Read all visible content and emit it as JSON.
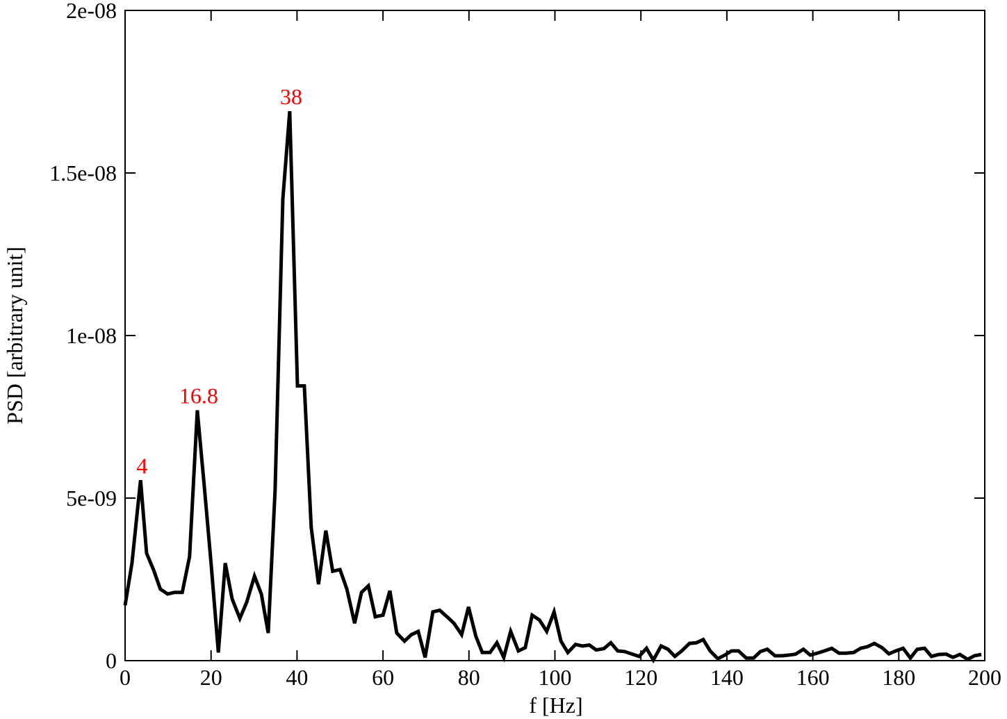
{
  "chart_data": {
    "type": "line",
    "x_label": "f [Hz]",
    "y_label": "PSD [arbitrary unit]",
    "xlim": [
      0,
      200
    ],
    "ylim": [
      0,
      2e-08
    ],
    "xticks": [
      0,
      20,
      40,
      60,
      80,
      100,
      120,
      140,
      160,
      180,
      200
    ],
    "yticks": [
      0,
      {
        "value": 5e-09,
        "label": "5e-09"
      },
      {
        "value": 1e-08,
        "label": "1e-08"
      },
      {
        "value": 1.5e-08,
        "label": "1.5e-08"
      },
      {
        "value": 2e-08,
        "label": "2e-08"
      }
    ],
    "annotations": [
      "4",
      "16.8",
      "38"
    ],
    "annotation_color": "#ff0000",
    "x": [
      0,
      1.6,
      3.6,
      5.0,
      6.6,
      8.2,
      9.9,
      11.5,
      13.3,
      15.0,
      16.8,
      18.4,
      20.0,
      21.7,
      23.3,
      24.9,
      26.7,
      28.3,
      30.1,
      31.7,
      33.3,
      34.9,
      36.7,
      38.3,
      40.1,
      41.7,
      43.3,
      45.0,
      46.7,
      48.3,
      50.0,
      51.6,
      53.4,
      55.0,
      56.6,
      58.2,
      60.0,
      61.6,
      63.2,
      65.0,
      66.6,
      68.2,
      69.8,
      71.6,
      73.2,
      74.9,
      76.5,
      78.3,
      79.9,
      81.6,
      83.1,
      84.9,
      86.5,
      88.1,
      89.7,
      91.5,
      93.1,
      94.7,
      96.4,
      98.1,
      99.8,
      101.4,
      103.0,
      104.8,
      106.4,
      108.0,
      109.6,
      111.4,
      113.0,
      114.6,
      116.2,
      118.0,
      119.6,
      121.3,
      122.9,
      124.7,
      126.3,
      127.9,
      129.5,
      131.3,
      132.9,
      134.5,
      136.1,
      137.9,
      139.5,
      141.1,
      142.7,
      144.5,
      146.2,
      147.8,
      149.4,
      151.2,
      152.8,
      154.4,
      156.0,
      157.8,
      159.4,
      161.0,
      162.7,
      164.4,
      166.1,
      167.7,
      169.5,
      171.1,
      172.7,
      174.3,
      176.1,
      177.7,
      179.3,
      181.0,
      182.7,
      184.3,
      186.0,
      187.6,
      189.3,
      191.0,
      192.6,
      194.2,
      196.0,
      197.6,
      199.2
    ],
    "series": [
      {
        "name": "PSD",
        "color": "#000000",
        "values": [
          1.7e-09,
          3e-09,
          5.55e-09,
          3.3e-09,
          2.8e-09,
          2.2e-09,
          2.05e-09,
          2.1e-09,
          2.1e-09,
          3.2e-09,
          7.7e-09,
          5.4e-09,
          3e-09,
          2.5e-10,
          3e-09,
          1.9e-09,
          1.3e-09,
          1.8e-09,
          2.6e-09,
          2.05e-09,
          8.5e-10,
          5.25e-09,
          1.42e-08,
          1.69e-08,
          8.45e-09,
          8.45e-09,
          4.1e-09,
          2.35e-09,
          4e-09,
          2.75e-09,
          2.8e-09,
          2.2e-09,
          1.15e-09,
          2.1e-09,
          2.3e-09,
          1.35e-09,
          1.4e-09,
          2.15e-09,
          8.5e-10,
          6e-10,
          8e-10,
          9e-10,
          1e-10,
          1.5e-09,
          1.55e-09,
          1.35e-09,
          1.15e-09,
          8e-10,
          1.65e-09,
          7.5e-10,
          2.5e-10,
          2.5e-10,
          5.5e-10,
          1e-10,
          9e-10,
          3e-10,
          4e-10,
          1.4e-09,
          1.25e-09,
          9e-10,
          1.5e-09,
          6e-10,
          2.5e-10,
          5e-10,
          4.5e-10,
          4.8e-10,
          3.3e-10,
          3.7e-10,
          5.5e-10,
          3e-10,
          2.8e-10,
          2e-10,
          1.3e-10,
          3.8e-10,
          2e-11,
          4.5e-10,
          3.5e-10,
          1.3e-10,
          3e-10,
          5.3e-10,
          5.5e-10,
          6.5e-10,
          3e-10,
          6e-11,
          1.7e-10,
          3e-10,
          3e-10,
          8e-11,
          8e-11,
          2.8e-10,
          3.5e-10,
          1.5e-10,
          1.5e-10,
          1.7e-10,
          2e-10,
          3.5e-10,
          1.7e-10,
          2.3e-10,
          3e-10,
          3.8e-10,
          2.3e-10,
          2.3e-10,
          2.5e-10,
          3.8e-10,
          4.3e-10,
          5.3e-10,
          4e-10,
          2.1e-10,
          3e-10,
          3.8e-10,
          8e-11,
          3.5e-10,
          3.8e-10,
          1.3e-10,
          1.9e-10,
          2e-10,
          1e-10,
          1.9e-10,
          4e-11,
          1.5e-10,
          1.9e-10
        ]
      }
    ]
  }
}
